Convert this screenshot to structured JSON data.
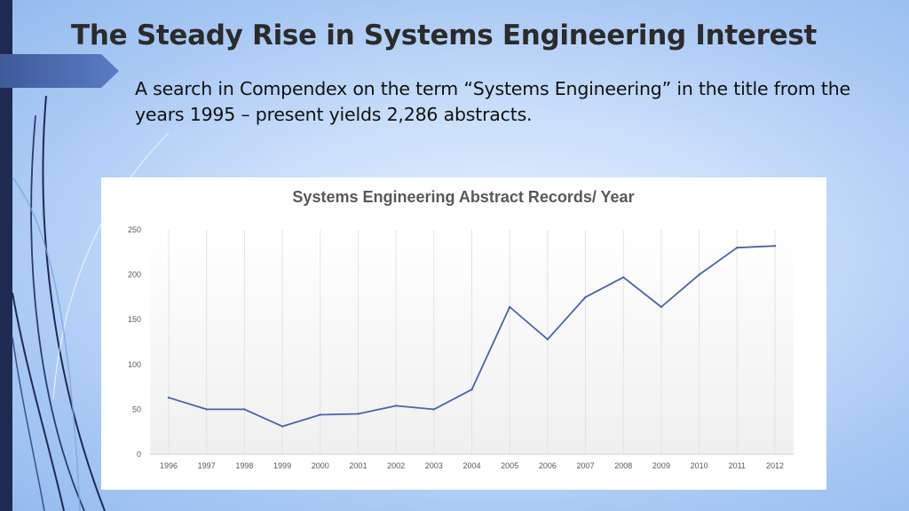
{
  "slide": {
    "title": "The Steady Rise in Systems Engineering Interest",
    "subtitle": "A search in Compendex on the term “Systems Engineering” in the title from the years 1995 – present yields 2,286 abstracts."
  },
  "colors": {
    "line": "#4a64a6",
    "gridline": "#e3e3e3",
    "left_bar": "#1f2a52",
    "arrow_tab": "#4a68ae"
  },
  "chart_data": {
    "type": "line",
    "title": "Systems Engineering Abstract Records/ Year",
    "xlabel": "",
    "ylabel": "",
    "categories": [
      "1996",
      "1997",
      "1998",
      "1999",
      "2000",
      "2001",
      "2002",
      "2003",
      "2004",
      "2005",
      "2006",
      "2007",
      "2008",
      "2009",
      "2010",
      "2011",
      "2012"
    ],
    "series": [
      {
        "values": [
          63,
          50,
          50,
          31,
          44,
          45,
          54,
          50,
          72,
          164,
          128,
          175,
          197,
          164,
          200,
          230,
          232
        ]
      }
    ],
    "yticks": [
      0,
      50,
      100,
      150,
      200,
      250
    ],
    "ylim": [
      0,
      250
    ],
    "grid": "vertical",
    "legend": "none"
  }
}
